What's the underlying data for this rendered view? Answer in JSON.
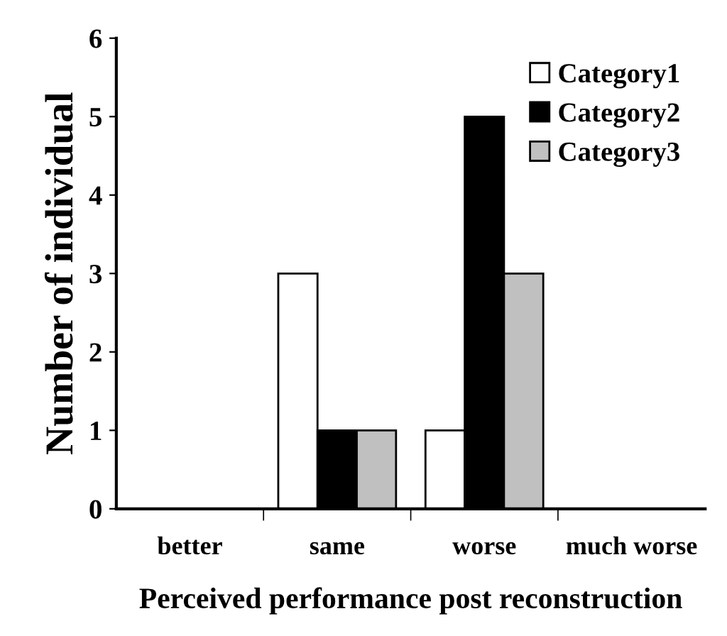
{
  "chart_data": {
    "type": "bar",
    "xlabel": "Perceived performance post reconstruction",
    "ylabel": "Number of individual",
    "categories": [
      "better",
      "same",
      "worse",
      "much worse"
    ],
    "series": [
      {
        "name": "Category1",
        "color": "#ffffff",
        "values": [
          0,
          3,
          1,
          0
        ]
      },
      {
        "name": "Category2",
        "color": "#000000",
        "values": [
          0,
          1,
          5,
          0
        ]
      },
      {
        "name": "Category3",
        "color": "#c0c0c0",
        "values": [
          0,
          1,
          3,
          0
        ]
      }
    ],
    "ylim": [
      0,
      6
    ],
    "yticks": [
      0,
      1,
      2,
      3,
      4,
      5,
      6
    ],
    "grid": false,
    "legend": "top right"
  }
}
